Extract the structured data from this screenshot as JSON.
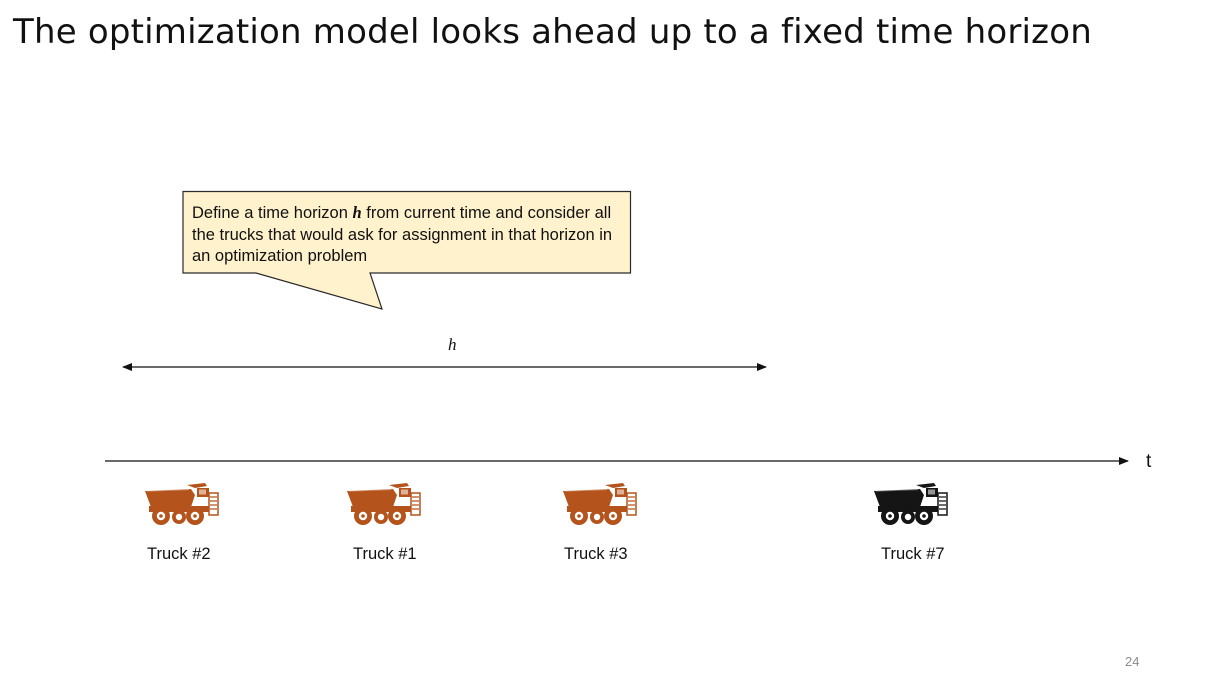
{
  "slide": {
    "title": "The optimization model looks ahead up to a fixed time horizon",
    "page_number": "24"
  },
  "callout": {
    "text_before": "Define a time horizon ",
    "emphasis": "h",
    "text_after": " from current time and consider all the trucks that would ask for assignment in that horizon in an optimization problem",
    "fill_color": "#fff2cc",
    "border_color": "#2b2b2b"
  },
  "horizon": {
    "label": "h"
  },
  "timeline": {
    "label": "t"
  },
  "trucks": [
    {
      "label": "Truck #2",
      "color": "#b5531c",
      "icon": "dump-truck-icon"
    },
    {
      "label": "Truck #1",
      "color": "#b5531c",
      "icon": "dump-truck-icon"
    },
    {
      "label": "Truck #3",
      "color": "#b5531c",
      "icon": "dump-truck-icon"
    },
    {
      "label": "Truck #7",
      "color": "#151515",
      "icon": "dump-truck-icon"
    }
  ]
}
